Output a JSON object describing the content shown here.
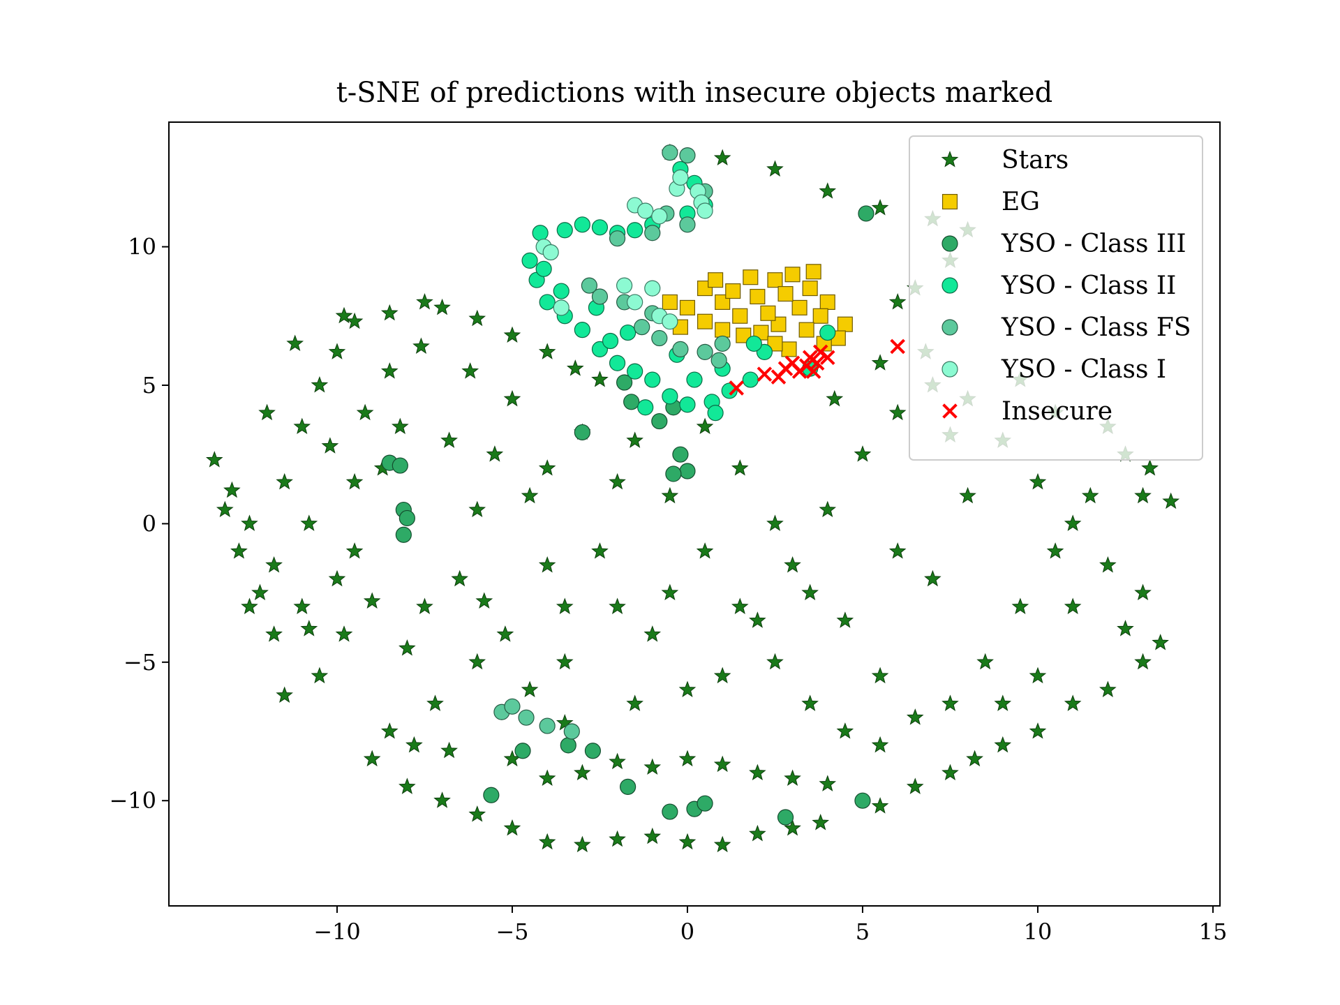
{
  "chart_data": {
    "type": "scatter",
    "title": "t-SNE of predictions with insecure objects marked",
    "xlabel": "",
    "ylabel": "",
    "xlim": [
      -14.8,
      15.2
    ],
    "ylim": [
      -13.8,
      14.5
    ],
    "x_ticks": [
      -10,
      -5,
      0,
      5,
      10,
      15
    ],
    "y_ticks": [
      -10,
      -5,
      0,
      5,
      10
    ],
    "x_tick_labels": [
      "−10",
      "−5",
      "0",
      "5",
      "10",
      "15"
    ],
    "y_tick_labels": [
      "−10",
      "−5",
      "0",
      "5",
      "10"
    ],
    "grid": false,
    "legend_position": "top-right",
    "series": [
      {
        "name": "Stars",
        "marker": "star",
        "color": "#1a7a1a",
        "edge": "#0b3d0b",
        "points": [
          [
            -13.5,
            2.3
          ],
          [
            -13,
            1.2
          ],
          [
            -12.8,
            -1
          ],
          [
            -12.2,
            -2.5
          ],
          [
            -11.8,
            -4
          ],
          [
            -11.5,
            1.5
          ],
          [
            -11,
            3.5
          ],
          [
            -10.5,
            5
          ],
          [
            -10,
            6.2
          ],
          [
            -9.5,
            7.3
          ],
          [
            -8.5,
            7.6
          ],
          [
            -7.5,
            8
          ],
          [
            -7,
            7.8
          ],
          [
            -6,
            7.4
          ],
          [
            -5,
            6.8
          ],
          [
            -4,
            6.2
          ],
          [
            -3.2,
            5.6
          ],
          [
            -2.5,
            5.2
          ],
          [
            -11.5,
            -6.2
          ],
          [
            -10.5,
            -5.5
          ],
          [
            -9.8,
            -4
          ],
          [
            -10,
            -2
          ],
          [
            -10.8,
            0
          ],
          [
            -11,
            -3
          ],
          [
            -9.5,
            -1
          ],
          [
            -8.7,
            2
          ],
          [
            -9.2,
            4
          ],
          [
            -8.5,
            5.5
          ],
          [
            -7.6,
            6.4
          ],
          [
            -12,
            4
          ],
          [
            -12.5,
            0
          ],
          [
            -11.8,
            -1.5
          ],
          [
            -10.2,
            2.8
          ],
          [
            -9,
            -2.8
          ],
          [
            -8,
            -4.5
          ],
          [
            -7.5,
            -3
          ],
          [
            -6.5,
            -2
          ],
          [
            -6,
            0.5
          ],
          [
            -5.5,
            2.5
          ],
          [
            -6.8,
            3
          ],
          [
            -5.2,
            -4
          ],
          [
            -4.5,
            -6
          ],
          [
            -6,
            -5
          ],
          [
            -7.2,
            -6.5
          ],
          [
            -8.5,
            -7.5
          ],
          [
            -9,
            -8.5
          ],
          [
            -8,
            -9.5
          ],
          [
            -7,
            -10
          ],
          [
            -6,
            -10.5
          ],
          [
            -5,
            -11
          ],
          [
            -4,
            -11.5
          ],
          [
            -3,
            -11.6
          ],
          [
            -2,
            -11.4
          ],
          [
            -1,
            -11.3
          ],
          [
            0,
            -11.5
          ],
          [
            1,
            -11.6
          ],
          [
            2,
            -11.2
          ],
          [
            3,
            -11
          ],
          [
            3.8,
            -10.8
          ],
          [
            -4,
            -9.2
          ],
          [
            -3,
            -9
          ],
          [
            -2,
            -8.6
          ],
          [
            -1,
            -8.8
          ],
          [
            0,
            -8.5
          ],
          [
            1,
            -8.7
          ],
          [
            2,
            -9
          ],
          [
            3,
            -9.2
          ],
          [
            4,
            -9.4
          ],
          [
            5.5,
            -10.2
          ],
          [
            6.5,
            -9.5
          ],
          [
            7.5,
            -9
          ],
          [
            8.2,
            -8.5
          ],
          [
            9,
            -8
          ],
          [
            10,
            -7.5
          ],
          [
            11,
            -6.5
          ],
          [
            12,
            -6
          ],
          [
            13,
            -5
          ],
          [
            13.5,
            -4.3
          ],
          [
            -3.5,
            -3
          ],
          [
            -2.5,
            -1
          ],
          [
            -2,
            1.5
          ],
          [
            -3,
            3.3
          ],
          [
            -1.5,
            3
          ],
          [
            -0.5,
            1
          ],
          [
            0.5,
            -1
          ],
          [
            1.5,
            -3
          ],
          [
            2.5,
            -5
          ],
          [
            3.5,
            -6.5
          ],
          [
            4.5,
            -7.5
          ],
          [
            5.5,
            -8
          ],
          [
            -1,
            -4
          ],
          [
            0,
            -6
          ],
          [
            1,
            -5.5
          ],
          [
            2,
            -3.5
          ],
          [
            3,
            -1.5
          ],
          [
            4,
            0.5
          ],
          [
            5,
            2.5
          ],
          [
            6,
            4
          ],
          [
            7,
            5
          ],
          [
            8,
            4.5
          ],
          [
            9,
            3
          ],
          [
            10,
            1.5
          ],
          [
            11,
            0
          ],
          [
            12,
            -1.5
          ],
          [
            13,
            -2.5
          ],
          [
            13.8,
            0.8
          ],
          [
            13.2,
            2
          ],
          [
            12.5,
            2.5
          ],
          [
            11.5,
            1
          ],
          [
            10.5,
            -1
          ],
          [
            9.5,
            -3
          ],
          [
            8.5,
            -5
          ],
          [
            7.5,
            -6.5
          ],
          [
            6.5,
            -7
          ],
          [
            5.5,
            -5.5
          ],
          [
            4.5,
            -3.5
          ],
          [
            3.5,
            -2.5
          ],
          [
            2.5,
            0
          ],
          [
            1.5,
            2
          ],
          [
            0.5,
            3.5
          ],
          [
            -1.5,
            -6.5
          ],
          [
            -3.5,
            -7.2
          ],
          [
            -5,
            -8.5
          ],
          [
            -6.8,
            -8.2
          ],
          [
            -7.8,
            -8
          ],
          [
            4.2,
            4.5
          ],
          [
            5.5,
            5.8
          ],
          [
            6.8,
            6.2
          ],
          [
            7.5,
            3.2
          ],
          [
            9.5,
            5.2
          ],
          [
            10.5,
            4
          ],
          [
            12,
            3.5
          ],
          [
            13,
            1
          ],
          [
            11,
            -3
          ],
          [
            12.5,
            -3.8
          ],
          [
            10,
            -5.5
          ],
          [
            9,
            -6.5
          ],
          [
            7,
            -2
          ],
          [
            6,
            -1
          ],
          [
            8,
            1
          ],
          [
            -0.5,
            -2.5
          ],
          [
            -2,
            -3
          ],
          [
            -4,
            -1.5
          ],
          [
            -4.5,
            1
          ],
          [
            -3.5,
            -5
          ],
          [
            -5.8,
            -2.8
          ],
          [
            -6.2,
            5.5
          ],
          [
            -5,
            4.5
          ],
          [
            -4,
            2
          ],
          [
            -10.8,
            -3.8
          ],
          [
            -12.5,
            -3
          ],
          [
            -13.2,
            0.5
          ],
          [
            -11.2,
            6.5
          ],
          [
            -9.8,
            7.5
          ],
          [
            -8.2,
            3.5
          ],
          [
            -9.5,
            1.5
          ],
          [
            -0.5,
            13.4
          ],
          [
            1,
            13.2
          ],
          [
            2.5,
            12.8
          ],
          [
            4,
            12
          ],
          [
            5.5,
            11.4
          ],
          [
            7,
            11
          ],
          [
            8,
            10.6
          ],
          [
            7.5,
            9.5
          ],
          [
            6.5,
            8.5
          ],
          [
            6,
            8
          ]
        ]
      },
      {
        "name": "EG",
        "marker": "square",
        "color": "#f5cc00",
        "edge": "#6e5a00",
        "points": [
          [
            -0.5,
            8
          ],
          [
            0,
            7.8
          ],
          [
            0.5,
            8.5
          ],
          [
            1,
            8
          ],
          [
            1.5,
            7.5
          ],
          [
            2,
            8.2
          ],
          [
            2.5,
            8.8
          ],
          [
            3,
            9
          ],
          [
            3.5,
            8.5
          ],
          [
            4,
            8
          ],
          [
            4.5,
            7.2
          ],
          [
            4.3,
            6.7
          ],
          [
            3.8,
            7.5
          ],
          [
            3.2,
            7.8
          ],
          [
            2.6,
            7.2
          ],
          [
            2.1,
            6.9
          ],
          [
            1.6,
            6.8
          ],
          [
            1,
            7
          ],
          [
            0.5,
            7.3
          ],
          [
            -0.2,
            7.1
          ],
          [
            0.8,
            8.8
          ],
          [
            1.8,
            8.9
          ],
          [
            2.8,
            8.3
          ],
          [
            3.6,
            9.1
          ],
          [
            1.3,
            8.4
          ],
          [
            2.3,
            7.6
          ],
          [
            3.4,
            7
          ],
          [
            2.9,
            6.3
          ],
          [
            3.9,
            6.5
          ],
          [
            2.5,
            6.5
          ]
        ]
      },
      {
        "name": "YSO - Class III",
        "marker": "circle",
        "color": "#2eaa66",
        "edge": "#144d2e",
        "points": [
          [
            -8.5,
            2.2
          ],
          [
            -8.2,
            2.1
          ],
          [
            -8.1,
            0.5
          ],
          [
            -8,
            0.2
          ],
          [
            -8.1,
            -0.4
          ],
          [
            -3,
            3.3
          ],
          [
            -1.6,
            4.4
          ],
          [
            -0.8,
            3.7
          ],
          [
            -0.2,
            2.5
          ],
          [
            0,
            1.9
          ],
          [
            -0.4,
            1.8
          ],
          [
            -5.6,
            -9.8
          ],
          [
            -4.7,
            -8.2
          ],
          [
            -2.7,
            -8.2
          ],
          [
            -3.4,
            -8
          ],
          [
            -1.7,
            -9.5
          ],
          [
            -0.5,
            -10.4
          ],
          [
            0.2,
            -10.3
          ],
          [
            0.5,
            -10.1
          ],
          [
            2.8,
            -10.6
          ],
          [
            5,
            -10
          ],
          [
            5.1,
            11.2
          ],
          [
            -1.8,
            5.1
          ],
          [
            -0.4,
            4.2
          ]
        ]
      },
      {
        "name": "YSO - Class II",
        "marker": "circle",
        "color": "#12e898",
        "edge": "#0a6b45",
        "points": [
          [
            -4.2,
            10.5
          ],
          [
            -4.5,
            9.5
          ],
          [
            -4.3,
            8.8
          ],
          [
            -4,
            8
          ],
          [
            -3.5,
            7.5
          ],
          [
            -3,
            7
          ],
          [
            -2.5,
            6.3
          ],
          [
            -2,
            5.8
          ],
          [
            -1.5,
            5.5
          ],
          [
            -1,
            5.2
          ],
          [
            -0.5,
            4.6
          ],
          [
            0,
            4.3
          ],
          [
            0.7,
            4.4
          ],
          [
            1.2,
            4.8
          ],
          [
            1.8,
            5.2
          ],
          [
            -3.5,
            10.6
          ],
          [
            -3,
            10.8
          ],
          [
            -2.5,
            10.7
          ],
          [
            -2,
            10.5
          ],
          [
            -1.5,
            10.6
          ],
          [
            -1,
            10.8
          ],
          [
            0,
            11.2
          ],
          [
            0.5,
            11.5
          ],
          [
            0.2,
            12.3
          ],
          [
            -0.2,
            12.8
          ],
          [
            0.8,
            4
          ],
          [
            2.2,
            6.2
          ],
          [
            3.5,
            5.6
          ],
          [
            4,
            6.9
          ],
          [
            -0.3,
            6.1
          ],
          [
            -2.2,
            6.6
          ],
          [
            -3.6,
            8.4
          ],
          [
            -4.1,
            9.2
          ],
          [
            0.2,
            5.2
          ],
          [
            1,
            5.6
          ],
          [
            -1.2,
            4.2
          ],
          [
            -2.6,
            7.8
          ],
          [
            -1.7,
            6.9
          ],
          [
            1.9,
            6.5
          ]
        ]
      },
      {
        "name": "YSO - Class FS",
        "marker": "circle",
        "color": "#5cc99c",
        "edge": "#255a43",
        "points": [
          [
            -0.5,
            13.4
          ],
          [
            0,
            13.3
          ],
          [
            -2,
            10.3
          ],
          [
            -1,
            10.5
          ],
          [
            0,
            10.8
          ],
          [
            -2.5,
            8.2
          ],
          [
            -1.8,
            8
          ],
          [
            -1,
            7.6
          ],
          [
            -0.2,
            6.3
          ],
          [
            0.5,
            6.2
          ],
          [
            0.9,
            5.9
          ],
          [
            -0.8,
            6.7
          ],
          [
            -5.3,
            -6.8
          ],
          [
            -5,
            -6.6
          ],
          [
            -4.6,
            -7
          ],
          [
            -4,
            -7.3
          ],
          [
            -3.3,
            -7.5
          ],
          [
            1,
            6.5
          ],
          [
            -0.6,
            11.2
          ],
          [
            0.5,
            12
          ],
          [
            -2.8,
            8.6
          ],
          [
            -1.3,
            7.1
          ]
        ]
      },
      {
        "name": "YSO - Class I",
        "marker": "circle",
        "color": "#8cfad2",
        "edge": "#3a7a63",
        "points": [
          [
            -4.1,
            10
          ],
          [
            -3.9,
            9.8
          ],
          [
            -1.5,
            11.5
          ],
          [
            -1.2,
            11.3
          ],
          [
            -0.8,
            11.1
          ],
          [
            0.3,
            12
          ],
          [
            0.4,
            11.6
          ],
          [
            0.5,
            11.3
          ],
          [
            -0.3,
            12.1
          ],
          [
            -1.5,
            8
          ],
          [
            -0.8,
            7.5
          ],
          [
            -0.5,
            7.3
          ],
          [
            -1,
            8.5
          ],
          [
            -0.2,
            12.5
          ],
          [
            -1.8,
            8.6
          ],
          [
            -3.6,
            7.8
          ]
        ]
      },
      {
        "name": "Insecure",
        "marker": "x",
        "color": "#ff0000",
        "edge": "#ff0000",
        "points": [
          [
            1.4,
            4.9
          ],
          [
            2.2,
            5.4
          ],
          [
            2.6,
            5.3
          ],
          [
            2.8,
            5.6
          ],
          [
            3,
            5.8
          ],
          [
            3.2,
            5.5
          ],
          [
            3.4,
            5.7
          ],
          [
            3.5,
            6
          ],
          [
            3.7,
            5.8
          ],
          [
            3.8,
            6.2
          ],
          [
            3.6,
            5.5
          ],
          [
            4,
            6
          ],
          [
            6,
            6.4
          ]
        ]
      }
    ]
  }
}
